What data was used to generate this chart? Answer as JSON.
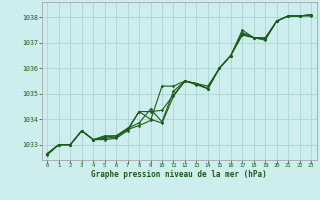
{
  "title": "Graphe pression niveau de la mer (hPa)",
  "bg_color": "#ceeeed",
  "grid_color": "#aad4d4",
  "line_color": "#1a5c1a",
  "xlim": [
    -0.5,
    23.5
  ],
  "ylim": [
    1032.4,
    1038.6
  ],
  "yticks": [
    1033,
    1034,
    1035,
    1036,
    1037,
    1038
  ],
  "xticks": [
    0,
    1,
    2,
    3,
    4,
    5,
    6,
    7,
    8,
    9,
    10,
    11,
    12,
    13,
    14,
    15,
    16,
    17,
    18,
    19,
    20,
    21,
    22,
    23
  ],
  "series": [
    [
      1032.65,
      1033.0,
      1033.0,
      1033.55,
      1033.2,
      1033.35,
      1033.35,
      1033.6,
      1033.75,
      1033.95,
      1035.3,
      1035.3,
      1035.5,
      1035.4,
      1035.3,
      1036.0,
      1036.5,
      1037.5,
      1037.2,
      1037.2,
      1037.85,
      1038.05,
      1038.05,
      1038.05
    ],
    [
      1032.65,
      1033.0,
      1033.0,
      1033.55,
      1033.2,
      1033.3,
      1033.35,
      1033.65,
      1033.85,
      1034.4,
      1033.9,
      1035.1,
      1035.5,
      1035.35,
      1035.2,
      1036.0,
      1036.5,
      1037.4,
      1037.2,
      1037.15,
      1037.85,
      1038.05,
      1038.05,
      1038.1
    ],
    [
      1032.65,
      1033.0,
      1033.0,
      1033.55,
      1033.2,
      1033.25,
      1033.3,
      1033.6,
      1034.3,
      1034.3,
      1034.35,
      1034.95,
      1035.5,
      1035.4,
      1035.2,
      1036.0,
      1036.5,
      1037.35,
      1037.2,
      1037.15,
      1037.85,
      1038.05,
      1038.05,
      1038.1
    ],
    [
      1032.6,
      1033.0,
      1033.0,
      1033.55,
      1033.2,
      1033.2,
      1033.25,
      1033.55,
      1034.3,
      1034.0,
      1033.85,
      1034.9,
      1035.5,
      1035.4,
      1035.2,
      1036.0,
      1036.5,
      1037.3,
      1037.2,
      1037.1,
      1037.85,
      1038.05,
      1038.05,
      1038.1
    ]
  ]
}
